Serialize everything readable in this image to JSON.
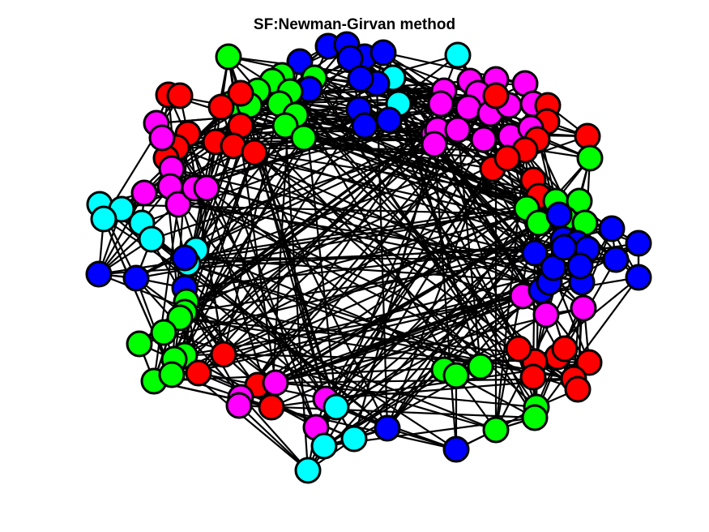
{
  "title": "SF:Newman-Girvan method",
  "colors": {
    "edge": "#000000",
    "node_outline": "#000000",
    "communities": [
      "#ff0000",
      "#00ff00",
      "#0000ff",
      "#00ffff",
      "#ff00ff"
    ]
  },
  "chart_data": {
    "type": "network",
    "title": "SF:Newman-Girvan method",
    "community_colors": [
      "red",
      "green",
      "blue",
      "cyan",
      "magenta"
    ],
    "axes_visible": false
  }
}
